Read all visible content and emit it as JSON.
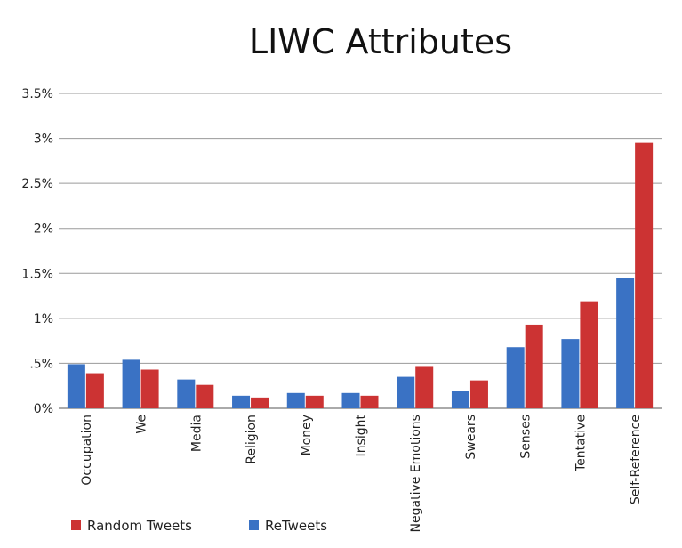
{
  "chart_data": {
    "type": "bar",
    "title": "LIWC Attributes",
    "xlabel": "",
    "ylabel": "",
    "ylim": [
      0,
      3.5
    ],
    "yticks": [
      {
        "value": 0,
        "label": "0%"
      },
      {
        "value": 0.5,
        "label": ".5%"
      },
      {
        "value": 1,
        "label": "1%"
      },
      {
        "value": 1.5,
        "label": "1.5%"
      },
      {
        "value": 2,
        "label": "2%"
      },
      {
        "value": 2.5,
        "label": "2.5%"
      },
      {
        "value": 3,
        "label": "3%"
      },
      {
        "value": 3.5,
        "label": "3.5%"
      }
    ],
    "grid": true,
    "legend_position": "bottom-left",
    "categories": [
      "Occupation",
      "We",
      "Media",
      "Religion",
      "Money",
      "Insight",
      "Negative Emotions",
      "Swears",
      "Senses",
      "Tentative",
      "Self-Reference"
    ],
    "series": [
      {
        "name": "ReTweets",
        "color": "#3a72c4",
        "values": [
          0.49,
          0.54,
          0.32,
          0.14,
          0.17,
          0.17,
          0.35,
          0.19,
          0.68,
          0.77,
          1.45
        ]
      },
      {
        "name": "Random Tweets",
        "color": "#cc3333",
        "values": [
          0.39,
          0.43,
          0.26,
          0.12,
          0.14,
          0.14,
          0.47,
          0.31,
          0.93,
          1.19,
          2.95
        ]
      }
    ],
    "legend": [
      {
        "label": "Random Tweets",
        "color": "#cc3333"
      },
      {
        "label": "ReTweets",
        "color": "#3a72c4"
      }
    ]
  }
}
